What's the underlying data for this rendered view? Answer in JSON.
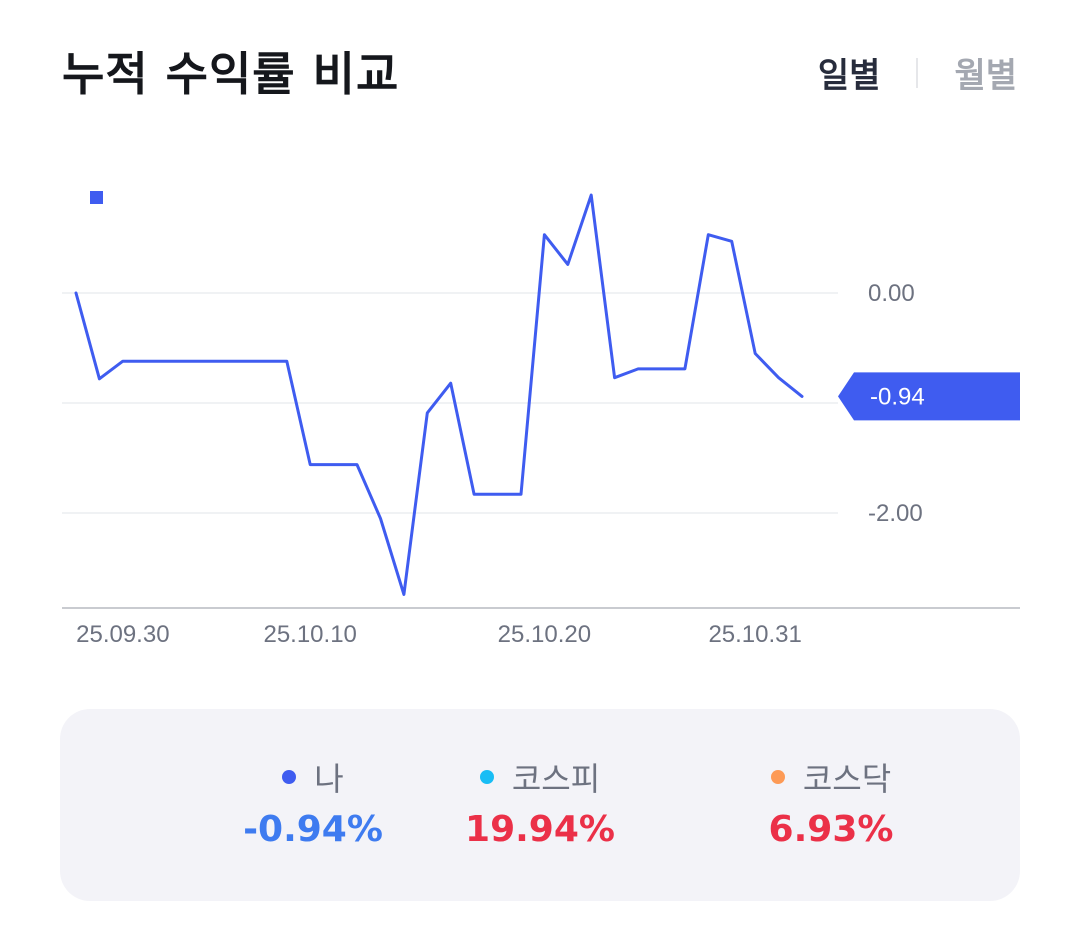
{
  "header": {
    "title": "누적 수익률 비교",
    "tabs": [
      {
        "label": "일별",
        "active": true
      },
      {
        "label": "월별",
        "active": false
      }
    ]
  },
  "chart_data": {
    "type": "line",
    "series": [
      {
        "name": "나",
        "color": "#3f5cf0",
        "values": [
          0.0,
          -0.78,
          -0.62,
          -0.62,
          -0.62,
          -0.62,
          -0.62,
          -0.62,
          -0.62,
          -0.62,
          -1.56,
          -1.56,
          -1.56,
          -2.05,
          -2.74,
          -1.09,
          -0.82,
          -1.83,
          -1.83,
          -1.83,
          0.53,
          0.26,
          0.89,
          -0.77,
          -0.69,
          -0.69,
          -0.69,
          0.53,
          0.47,
          -0.55,
          -0.77,
          -0.94
        ]
      }
    ],
    "x_tick_labels": [
      "25.09.30",
      "25.10.10",
      "25.10.20",
      "25.10.31"
    ],
    "x_tick_indices": [
      2,
      10,
      20,
      29
    ],
    "y_tick_labels": [
      "0.00",
      "-2.00"
    ],
    "y_ticks": [
      0.0,
      -2.0
    ],
    "gridlines": [
      0.0,
      -1.0,
      -2.0
    ],
    "ylim": [
      -2.9,
      1.3
    ],
    "grid": true,
    "current_label": "-0.94",
    "current_value": -0.94,
    "accent_color": "#3f5cf0"
  },
  "summary": {
    "items": [
      {
        "name": "나",
        "value": "-0.94%",
        "dot_color": "#3f5cf0",
        "value_color": "#3e7bf0"
      },
      {
        "name": "코스피",
        "value": "19.94%",
        "dot_color": "#18bdf5",
        "value_color": "#eb3048"
      },
      {
        "name": "코스닥",
        "value": "6.93%",
        "dot_color": "#fd9a56",
        "value_color": "#eb3048"
      }
    ]
  }
}
